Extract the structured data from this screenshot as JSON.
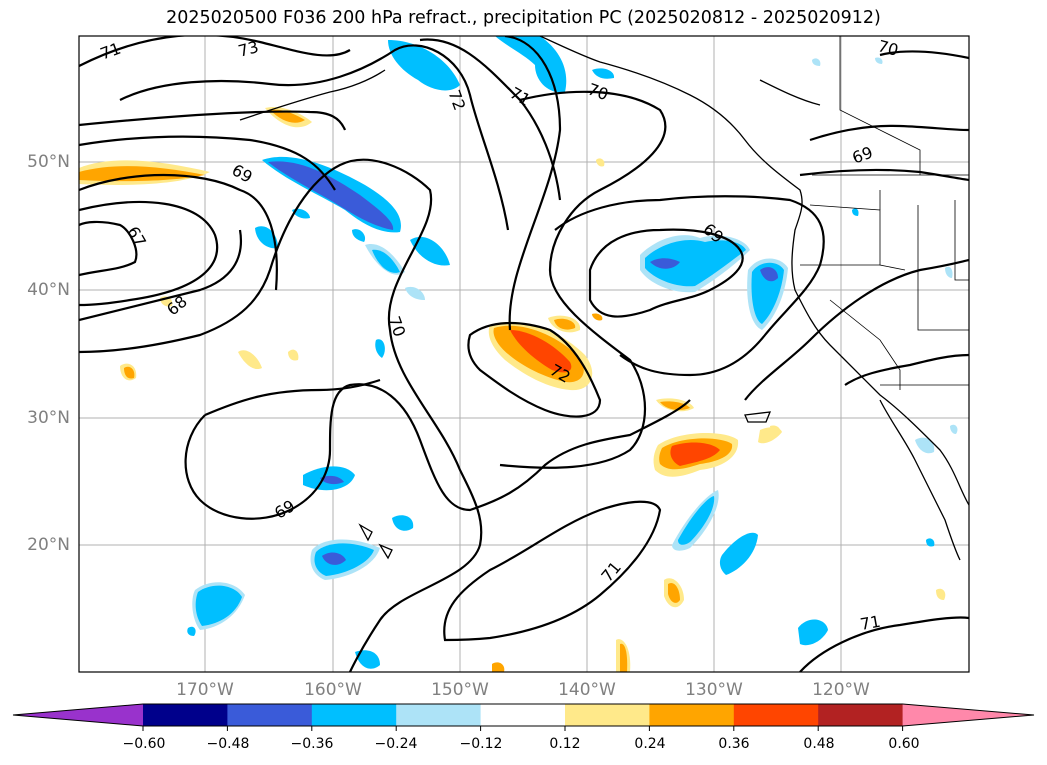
{
  "title": "2025020500 F036 200 hPa refract., precipitation PC (2025020812 - 2025020912)",
  "lat_labels": [
    "50°N",
    "40°N",
    "30°N",
    "20°N"
  ],
  "lon_labels": [
    "170°W",
    "160°W",
    "150°W",
    "140°W",
    "130°W",
    "120°W"
  ],
  "contour_labels": [
    "71",
    "73",
    "72",
    "71",
    "70",
    "70",
    "69",
    "69",
    "67",
    "68",
    "70",
    "69",
    "72",
    "69",
    "71",
    "71"
  ],
  "colorbar": {
    "labels": [
      "−0.60",
      "−0.48",
      "−0.36",
      "−0.24",
      "−0.12",
      "0.12",
      "0.24",
      "0.36",
      "0.48",
      "0.60"
    ],
    "colors": [
      "#9932cc",
      "#00008b",
      "#3a5bd9",
      "#00bfff",
      "#ade3f7",
      "#ffffff",
      "#ffe98a",
      "#ffa500",
      "#ff4500",
      "#b22222",
      "#ff88aa"
    ]
  },
  "chart_data": {
    "type": "map",
    "field_contours": "200 hPa refractivity",
    "field_shading": "precipitation PC",
    "contour_levels": [
      67,
      68,
      69,
      70,
      71,
      72,
      73
    ],
    "shading_levels": [
      -0.6,
      -0.48,
      -0.36,
      -0.24,
      -0.12,
      0.12,
      0.24,
      0.36,
      0.48,
      0.6
    ],
    "grid": true
  }
}
